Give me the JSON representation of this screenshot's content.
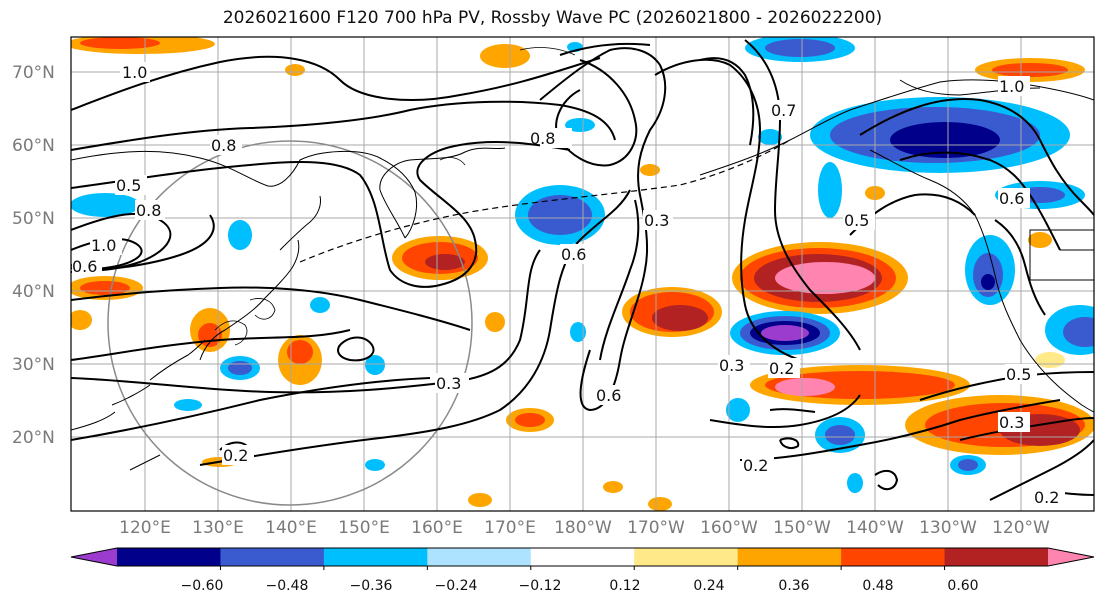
{
  "title": "2026021600 F120 700 hPa PV, Rossby Wave PC (2026021800 - 2026022200)",
  "map": {
    "lat_labels": [
      "70°N",
      "60°N",
      "50°N",
      "40°N",
      "30°N",
      "20°N"
    ],
    "lon_labels": [
      "120°E",
      "130°E",
      "140°E",
      "150°E",
      "160°E",
      "170°E",
      "180°W",
      "170°W",
      "160°W",
      "150°W",
      "140°W",
      "130°W",
      "120°W"
    ],
    "contour_labels": [
      "1.0",
      "0.8",
      "0.5",
      "0.8",
      "1.0",
      "0.6",
      "0.8",
      "0.6",
      "0.3",
      "0.6",
      "0.3",
      "0.2",
      "0.2",
      "0.5",
      "0.6",
      "1.0",
      "0.7",
      "0.3",
      "0.2",
      "0.5",
      "0.3",
      "0.2"
    ]
  },
  "colorbar": {
    "ticks": [
      "−0.60",
      "−0.48",
      "−0.36",
      "−0.24",
      "−0.12",
      "0.12",
      "0.24",
      "0.36",
      "0.48",
      "0.60"
    ],
    "colors": [
      "#9b3ccf",
      "#00008b",
      "#3a5bd0",
      "#00bfff",
      "#aee3ff",
      "#ffffff",
      "#ffe989",
      "#ffa500",
      "#ff4500",
      "#b22222",
      "#ff85b0"
    ]
  },
  "colors": {
    "neg_strong": "#00008b",
    "neg_mid": "#3a5bd0",
    "neg_light": "#00bfff",
    "neg_faint": "#aee3ff",
    "pos_faint": "#ffe989",
    "pos_light": "#ffa500",
    "pos_mid": "#ff4500",
    "pos_strong": "#b22222",
    "pos_max": "#ff85b0",
    "neg_max": "#9b3ccf"
  }
}
